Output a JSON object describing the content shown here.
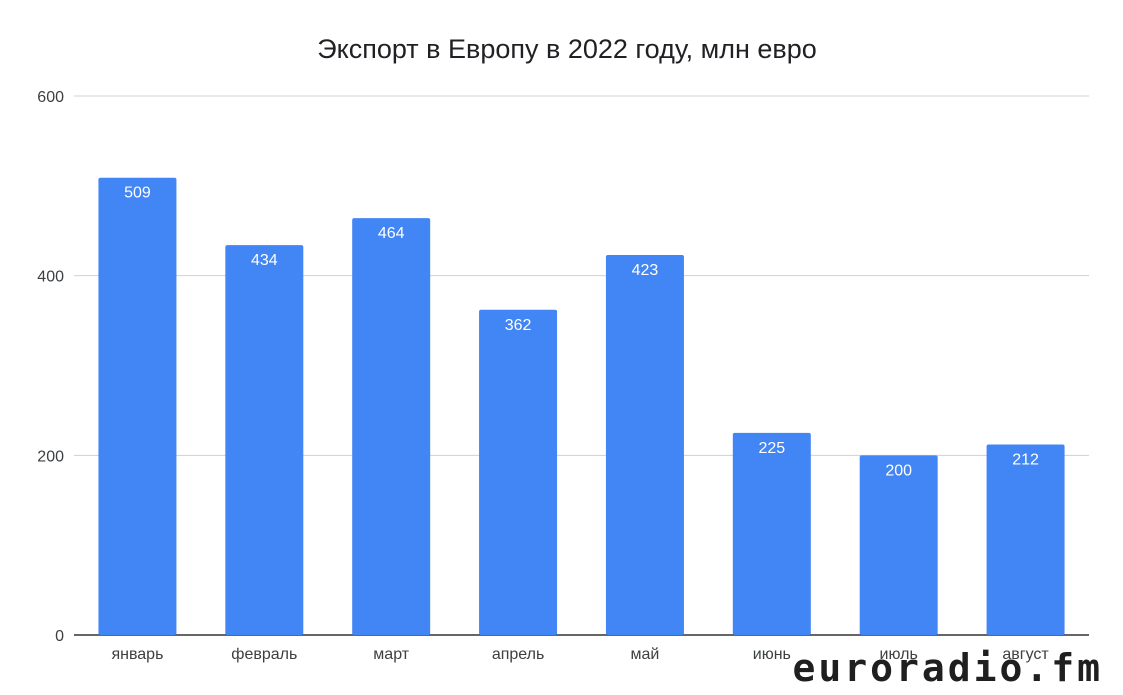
{
  "chart_data": {
    "type": "bar",
    "title": "Экспорт в Европу в 2022 году, млн евро",
    "xlabel": "",
    "ylabel": "",
    "categories": [
      "январь",
      "февраль",
      "март",
      "апрель",
      "май",
      "июнь",
      "июль",
      "август"
    ],
    "values": [
      509,
      434,
      464,
      362,
      423,
      225,
      200,
      212
    ],
    "ylim": [
      0,
      600
    ],
    "yticks": [
      "0",
      "200",
      "400",
      "600"
    ],
    "grid": true,
    "legend": "none",
    "bar_color": "#4285f4",
    "data_label_color": "#ffffff"
  },
  "watermark": {
    "text": "euroradio.fm",
    "accent_color": "#2ecc71"
  }
}
